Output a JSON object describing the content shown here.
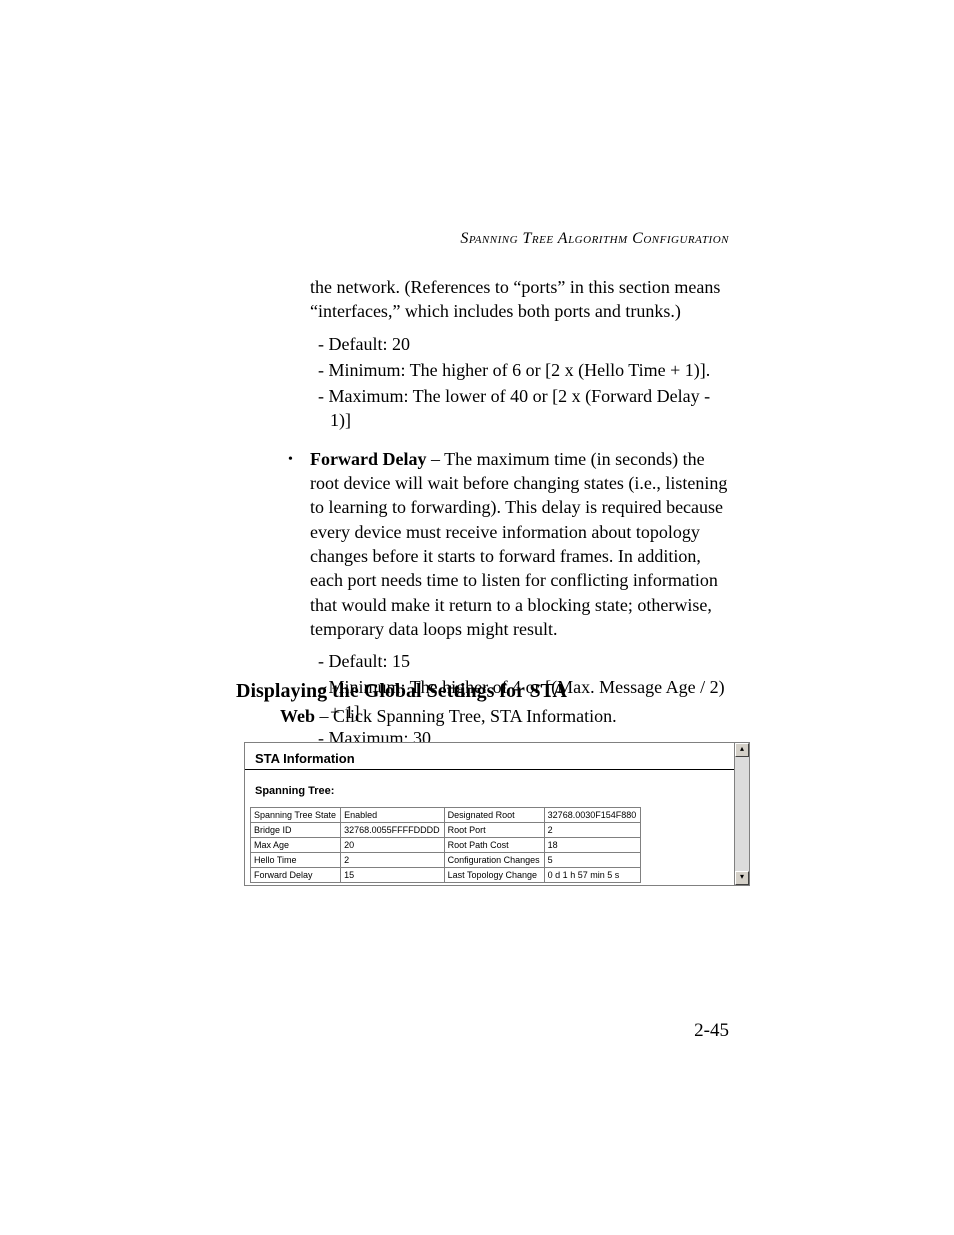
{
  "header": "Spanning Tree Algorithm Configuration",
  "intro": "the network. (References to “ports” in this section means “interfaces,” which includes both ports and trunks.)",
  "first_sublist": [
    "Default: 20",
    "Minimum: The higher of 6 or [2 x (Hello Time + 1)].",
    "Maximum: The lower of 40 or [2 x (Forward Delay - 1)]"
  ],
  "fd_label": "Forward Delay",
  "fd_text": " – The maximum time (in seconds) the root device will wait before changing states (i.e., listening to learning to forwarding). This delay is required because every device must receive information about topology changes before it starts to forward frames. In addition, each port needs time to listen for conflicting information that would make it return to a blocking state; otherwise, temporary data loops might result.",
  "second_sublist": [
    "Default: 15",
    "Minimum: The higher of 4 or [(Max. Message Age / 2) + 1]",
    "Maximum: 30"
  ],
  "h2": "Displaying the Global Settings for STA",
  "web_label": "Web",
  "web_text": " – Click Spanning Tree, STA Information.",
  "screenshot": {
    "title": "STA Information",
    "subtitle": "Spanning Tree:",
    "rows": [
      {
        "l1": "Spanning Tree State",
        "v1": "Enabled",
        "l2": "Designated Root",
        "v2": "32768.0030F154F880"
      },
      {
        "l1": "Bridge ID",
        "v1": "32768.0055FFFFDDDD",
        "l2": "Root Port",
        "v2": "2"
      },
      {
        "l1": "Max Age",
        "v1": "20",
        "l2": "Root Path Cost",
        "v2": "18"
      },
      {
        "l1": "Hello Time",
        "v1": "2",
        "l2": "Configuration Changes",
        "v2": "5"
      },
      {
        "l1": "Forward Delay",
        "v1": "15",
        "l2": "Last Topology Change",
        "v2": "0 d 1 h 57 min 5 s"
      }
    ]
  },
  "page_number": "2-45",
  "colors": {
    "text": "#000000",
    "background": "#ffffff",
    "border": "#808080",
    "scroll_track": "#dcdcdc",
    "scroll_face": "#d4d0c8"
  }
}
